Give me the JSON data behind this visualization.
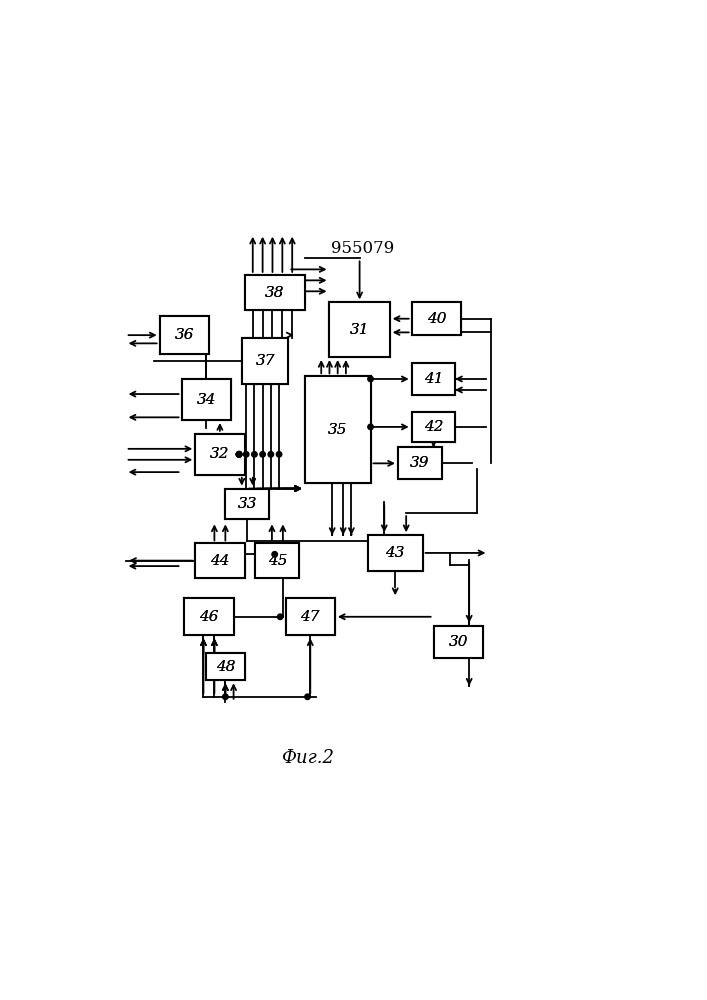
{
  "title": "955079",
  "caption": "Фиг.2",
  "background_color": "#ffffff",
  "line_color": "#000000",
  "box_color": "#ffffff",
  "box_edge_color": "#000000",
  "text_color": "#000000",
  "figsize": [
    7.07,
    10.0
  ],
  "dpi": 100,
  "boxes": {
    "30": [
      0.63,
      0.72,
      0.09,
      0.06
    ],
    "31": [
      0.44,
      0.13,
      0.11,
      0.1
    ],
    "32": [
      0.195,
      0.37,
      0.09,
      0.075
    ],
    "33": [
      0.25,
      0.47,
      0.08,
      0.055
    ],
    "34": [
      0.17,
      0.27,
      0.09,
      0.075
    ],
    "35": [
      0.395,
      0.265,
      0.12,
      0.195
    ],
    "36": [
      0.13,
      0.155,
      0.09,
      0.07
    ],
    "37": [
      0.28,
      0.195,
      0.085,
      0.085
    ],
    "38": [
      0.285,
      0.08,
      0.11,
      0.065
    ],
    "39": [
      0.565,
      0.395,
      0.08,
      0.058
    ],
    "40": [
      0.59,
      0.13,
      0.09,
      0.06
    ],
    "41": [
      0.59,
      0.24,
      0.08,
      0.06
    ],
    "42": [
      0.59,
      0.33,
      0.08,
      0.055
    ],
    "43": [
      0.51,
      0.555,
      0.1,
      0.065
    ],
    "44": [
      0.195,
      0.57,
      0.09,
      0.063
    ],
    "45": [
      0.305,
      0.57,
      0.08,
      0.063
    ],
    "46": [
      0.175,
      0.67,
      0.09,
      0.068
    ],
    "47": [
      0.36,
      0.67,
      0.09,
      0.068
    ],
    "48": [
      0.215,
      0.77,
      0.07,
      0.05
    ]
  }
}
